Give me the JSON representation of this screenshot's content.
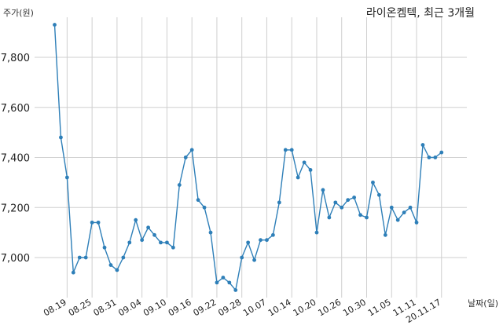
{
  "chart_data": {
    "type": "line",
    "title": "라이온켐텍, 최근 3개월",
    "ylabel": "주가(원)",
    "xlabel": "날짜(일)",
    "ylim": [
      6840,
      7960
    ],
    "yticks": [
      7000,
      7200,
      7400,
      7600,
      7800
    ],
    "ytick_labels": [
      "7,000",
      "7,200",
      "7,400",
      "7,600",
      "7,800"
    ],
    "xtick_labels": [
      "08.19",
      "08.25",
      "08.31",
      "09.04",
      "09.10",
      "09.16",
      "09.22",
      "09.28",
      "10.07",
      "10.14",
      "10.20",
      "10.26",
      "10.30",
      "11.05",
      "11.11",
      "20.11.17"
    ],
    "xtick_indices": [
      2,
      6,
      10,
      14,
      18,
      22,
      26,
      30,
      34,
      38,
      42,
      46,
      50,
      54,
      58,
      62
    ],
    "grid": true,
    "color": "#2e7fb8",
    "values": [
      7930,
      7480,
      7320,
      6940,
      7000,
      7000,
      7140,
      7140,
      7040,
      6970,
      6950,
      7000,
      7060,
      7150,
      7070,
      7120,
      7090,
      7060,
      7060,
      7040,
      7290,
      7400,
      7430,
      7230,
      7200,
      7100,
      6900,
      6920,
      6900,
      6870,
      7000,
      7060,
      6990,
      7070,
      7070,
      7090,
      7220,
      7430,
      7430,
      7320,
      7380,
      7350,
      7100,
      7270,
      7160,
      7220,
      7200,
      7230,
      7240,
      7170,
      7160,
      7300,
      7250,
      7090,
      7200,
      7150,
      7180,
      7200,
      7140,
      7450,
      7400,
      7400,
      7420
    ]
  }
}
